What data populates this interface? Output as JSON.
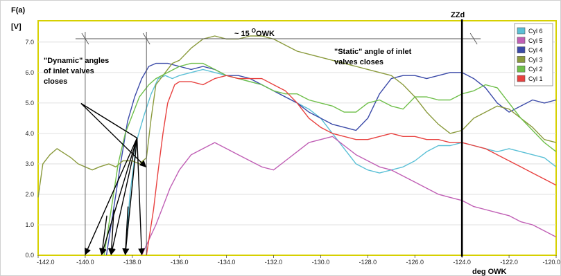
{
  "chart_data": {
    "type": "line",
    "ylabel_line1": "F(a)",
    "ylabel_line2": "[V]",
    "xlabel": "deg   OWK",
    "xlim": [
      -142.0,
      -120.0
    ],
    "ylim": [
      0.0,
      7.7
    ],
    "x_ticks": [
      "-142.0",
      "-140.0",
      "-138.0",
      "-136.0",
      "-134.0",
      "-132.0",
      "-130.0",
      "-128.0",
      "-126.0",
      "-124.0",
      "-122.0",
      "-120.0"
    ],
    "y_ticks": [
      "0.0",
      "1.0",
      "2.0",
      "3.0",
      "4.0",
      "5.0",
      "6.0",
      "7.0"
    ],
    "grid": true,
    "legend_position": "top-right",
    "series": [
      {
        "name": "Cyl 6",
        "color": "#5bc0d6",
        "x": [
          -138.3,
          -138.1,
          -137.8,
          -137.5,
          -137.2,
          -136.9,
          -136.6,
          -136.3,
          -136.0,
          -135.5,
          -135.0,
          -134.5,
          -134.0,
          -133.5,
          -133.0,
          -132.5,
          -132.0,
          -131.5,
          -131.0,
          -130.5,
          -130.0,
          -129.5,
          -129.0,
          -128.5,
          -128.0,
          -127.5,
          -127.0,
          -126.5,
          -126.0,
          -125.5,
          -125.0,
          -124.5,
          -124.0,
          -123.5,
          -123.0,
          -122.5,
          -122.0,
          -121.5,
          -121.0,
          -120.5,
          -120.0
        ],
        "y": [
          0.0,
          2.0,
          3.8,
          4.6,
          5.3,
          5.8,
          5.9,
          5.8,
          5.9,
          6.0,
          6.1,
          6.0,
          5.9,
          5.8,
          5.7,
          5.6,
          5.4,
          5.2,
          5.0,
          4.8,
          4.5,
          4.0,
          3.5,
          3.0,
          2.8,
          2.7,
          2.8,
          2.9,
          3.1,
          3.4,
          3.6,
          3.6,
          3.7,
          3.6,
          3.5,
          3.4,
          3.5,
          3.4,
          3.3,
          3.2,
          2.9
        ]
      },
      {
        "name": "Cyl 5",
        "color": "#c05fb5",
        "x": [
          -137.6,
          -137.3,
          -137.0,
          -136.7,
          -136.4,
          -136.0,
          -135.5,
          -135.0,
          -134.5,
          -134.0,
          -133.5,
          -133.0,
          -132.5,
          -132.0,
          -131.5,
          -131.0,
          -130.5,
          -130.0,
          -129.5,
          -129.0,
          -128.5,
          -128.0,
          -127.5,
          -127.0,
          -126.5,
          -126.0,
          -125.5,
          -125.0,
          -124.5,
          -124.0,
          -123.5,
          -123.0,
          -122.5,
          -122.0,
          -121.5,
          -121.0,
          -120.5,
          -120.0
        ],
        "y": [
          0.0,
          0.5,
          1.0,
          1.6,
          2.2,
          2.8,
          3.3,
          3.5,
          3.7,
          3.5,
          3.3,
          3.1,
          2.9,
          2.8,
          3.1,
          3.4,
          3.7,
          3.8,
          3.9,
          3.6,
          3.3,
          3.1,
          2.9,
          2.8,
          2.6,
          2.4,
          2.2,
          2.0,
          1.9,
          1.8,
          1.6,
          1.5,
          1.4,
          1.3,
          1.1,
          1.0,
          0.8,
          0.6
        ]
      },
      {
        "name": "Cyl 4",
        "color": "#3b4aa8",
        "x": [
          -139.1,
          -138.8,
          -138.5,
          -138.2,
          -137.9,
          -137.6,
          -137.3,
          -137.0,
          -136.5,
          -136.0,
          -135.5,
          -135.0,
          -134.5,
          -134.0,
          -133.5,
          -133.0,
          -132.5,
          -132.0,
          -131.5,
          -131.0,
          -130.5,
          -130.0,
          -129.5,
          -129.0,
          -128.5,
          -128.0,
          -127.5,
          -127.0,
          -126.5,
          -126.0,
          -125.5,
          -125.0,
          -124.5,
          -124.0,
          -123.5,
          -123.0,
          -122.5,
          -122.0,
          -121.5,
          -121.0,
          -120.5,
          -120.0
        ],
        "y": [
          0.0,
          1.5,
          3.0,
          4.4,
          5.2,
          5.8,
          6.2,
          6.3,
          6.3,
          6.2,
          6.1,
          6.2,
          6.1,
          5.9,
          5.9,
          5.8,
          5.6,
          5.4,
          5.2,
          5.0,
          4.7,
          4.5,
          4.3,
          4.2,
          4.1,
          4.5,
          5.3,
          5.8,
          5.9,
          5.9,
          5.8,
          5.9,
          6.0,
          6.0,
          5.8,
          5.5,
          5.0,
          4.7,
          4.9,
          5.1,
          5.0,
          5.1
        ]
      },
      {
        "name": "Cyl 3",
        "color": "#8a9a3c",
        "x": [
          -142.0,
          -141.8,
          -141.5,
          -141.2,
          -141.0,
          -140.6,
          -140.3,
          -140.0,
          -139.7,
          -139.4,
          -139.0,
          -138.7,
          -138.4,
          -138.0,
          -137.7,
          -137.4,
          -137.2,
          -137.0,
          -136.6,
          -136.3,
          -136.0,
          -135.5,
          -135.0,
          -134.5,
          -134.0,
          -133.5,
          -133.0,
          -132.5,
          -132.0,
          -131.5,
          -131.0,
          -130.5,
          -130.0,
          -129.5,
          -129.0,
          -128.5,
          -128.0,
          -127.5,
          -127.0,
          -126.5,
          -126.0,
          -125.5,
          -125.0,
          -124.5,
          -124.0,
          -123.5,
          -123.0,
          -122.5,
          -122.0,
          -121.5,
          -121.0,
          -120.5,
          -120.0
        ],
        "y": [
          1.9,
          3.0,
          3.3,
          3.5,
          3.4,
          3.2,
          3.0,
          2.9,
          2.8,
          2.9,
          3.0,
          2.9,
          3.1,
          3.1,
          3.0,
          3.2,
          4.5,
          5.6,
          6.0,
          6.3,
          6.4,
          6.8,
          7.1,
          7.2,
          7.1,
          7.1,
          7.2,
          7.2,
          7.1,
          6.9,
          6.7,
          6.6,
          6.5,
          6.4,
          6.3,
          6.2,
          6.1,
          6.0,
          5.9,
          5.6,
          5.2,
          4.7,
          4.3,
          4.0,
          4.1,
          4.5,
          4.7,
          4.9,
          4.8,
          4.5,
          4.2,
          3.8,
          3.7
        ]
      },
      {
        "name": "Cyl 2",
        "color": "#6fbf4a",
        "x": [
          -139.2,
          -138.9,
          -138.6,
          -138.3,
          -138.0,
          -137.7,
          -137.3,
          -137.0,
          -136.5,
          -136.0,
          -135.5,
          -135.0,
          -134.5,
          -134.0,
          -133.5,
          -133.0,
          -132.5,
          -132.0,
          -131.5,
          -131.0,
          -130.5,
          -130.0,
          -129.5,
          -129.0,
          -128.5,
          -128.0,
          -127.5,
          -127.0,
          -126.5,
          -126.0,
          -125.5,
          -125.0,
          -124.5,
          -124.0,
          -123.5,
          -123.0,
          -122.5,
          -122.0,
          -121.5,
          -121.0,
          -120.5,
          -120.0
        ],
        "y": [
          0.0,
          1.5,
          3.0,
          4.0,
          4.6,
          5.2,
          5.6,
          5.8,
          6.0,
          6.2,
          6.3,
          6.3,
          6.1,
          5.9,
          5.8,
          5.7,
          5.6,
          5.4,
          5.3,
          5.3,
          5.1,
          5.0,
          4.9,
          4.7,
          4.7,
          5.0,
          5.1,
          4.9,
          4.8,
          5.2,
          5.2,
          5.1,
          5.1,
          5.3,
          5.4,
          5.6,
          5.5,
          5.0,
          4.5,
          4.1,
          3.7,
          3.4
        ]
      },
      {
        "name": "Cyl 1",
        "color": "#e8413f",
        "x": [
          -137.4,
          -137.1,
          -136.9,
          -136.7,
          -136.5,
          -136.2,
          -136.0,
          -135.5,
          -135.0,
          -134.5,
          -134.0,
          -133.5,
          -133.0,
          -132.5,
          -132.0,
          -131.5,
          -131.0,
          -130.5,
          -130.0,
          -129.5,
          -129.0,
          -128.5,
          -128.0,
          -127.5,
          -127.0,
          -126.5,
          -126.0,
          -125.5,
          -125.0,
          -124.5,
          -124.0,
          -123.5,
          -123.0,
          -122.5,
          -122.0,
          -121.5,
          -121.0,
          -120.5,
          -120.0
        ],
        "y": [
          0.0,
          1.5,
          2.8,
          4.0,
          5.0,
          5.6,
          5.7,
          5.7,
          5.6,
          5.8,
          5.9,
          5.8,
          5.8,
          5.8,
          5.6,
          5.4,
          5.0,
          4.5,
          4.2,
          4.0,
          3.9,
          3.8,
          3.8,
          3.9,
          4.0,
          3.9,
          3.9,
          3.8,
          3.8,
          3.7,
          3.7,
          3.6,
          3.5,
          3.3,
          3.1,
          2.9,
          2.7,
          2.5,
          2.3
        ]
      }
    ],
    "annotations": {
      "top_span_label_prefix": "~ 15 ",
      "top_span_label_sup": "O",
      "top_span_label_suffix": "OWK",
      "zzd_label": "ZZd",
      "dynamic_label_lines": [
        "\"Dynamic\" angles",
        "of inlet valves",
        "closes"
      ],
      "static_label_lines": [
        "\"Static\" angle of inlet",
        "valves closes"
      ],
      "top_span_from": -140.0,
      "top_span_to": -137.4,
      "top_span_end": -123.5,
      "zzd_x": -124.0,
      "pointer_origin": [
        -137.8,
        3.85
      ],
      "pointer_targets": [
        [
          -140.0,
          0.0
        ],
        [
          -139.3,
          0.0
        ],
        [
          -138.9,
          0.0
        ],
        [
          -138.3,
          0.0
        ],
        [
          -137.6,
          0.0
        ]
      ],
      "dynamic_pointer_from": [
        -139.0,
        5.1
      ],
      "short_arrows": [
        [
          -139.2,
          1.3
        ],
        [
          -138.9,
          1.5
        ],
        [
          -138.3,
          1.6
        ]
      ]
    }
  }
}
